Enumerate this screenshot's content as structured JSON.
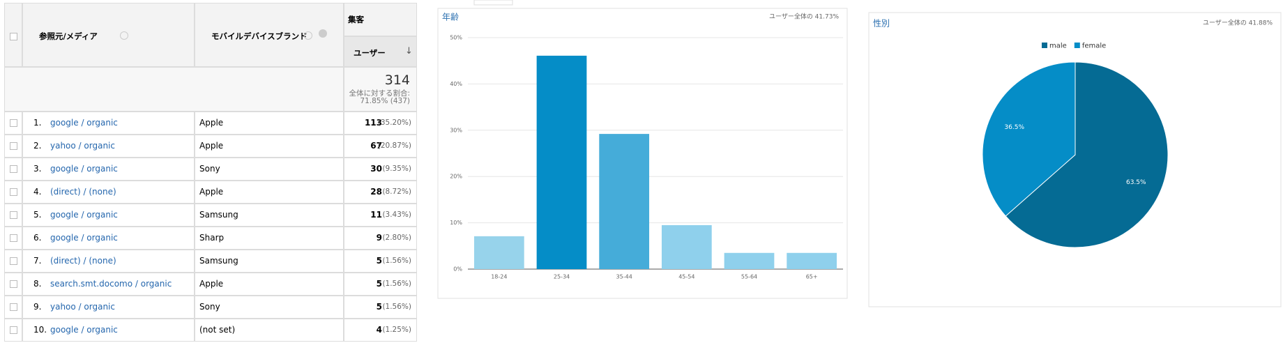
{
  "table": {
    "headers": {
      "source": "参照元/メディア",
      "brand": "モバイルデバイスブランド",
      "group": "集客",
      "users": "ユーザー"
    },
    "totals": {
      "value": "314",
      "caption": "全体に対する割合:",
      "share": "71.85% (437)"
    },
    "rows": [
      [
        "1.",
        "google / organic",
        "Apple",
        113,
        "(35.20%)"
      ],
      [
        "2.",
        "yahoo / organic",
        "Apple",
        67,
        "(20.87%)"
      ],
      [
        "3.",
        "google / organic",
        "Sony",
        30,
        "(9.35%)"
      ],
      [
        "4.",
        "(direct) / (none)",
        "Apple",
        28,
        "(8.72%)"
      ],
      [
        "5.",
        "google / organic",
        "Samsung",
        11,
        "(3.43%)"
      ],
      [
        "6.",
        "google / organic",
        "Sharp",
        9,
        "(2.80%)"
      ],
      [
        "7.",
        "(direct) / (none)",
        "Samsung",
        5,
        "(1.56%)"
      ],
      [
        "8.",
        "search.smt.docomo / organic",
        "Apple",
        5,
        "(1.56%)"
      ],
      [
        "9.",
        "yahoo / organic",
        "Sony",
        5,
        "(1.56%)"
      ],
      [
        "10.",
        "google / organic",
        "(not set)",
        4,
        "(1.25%)"
      ]
    ]
  },
  "chart_data": [
    {
      "type": "bar",
      "title": "年齢",
      "note": "ユーザー全体の 41.73%",
      "categories": [
        "18-24",
        "25-34",
        "35-44",
        "45-54",
        "55-64",
        "65+"
      ],
      "values": [
        7.1,
        46.1,
        29.2,
        9.5,
        3.5,
        3.5
      ],
      "colors": [
        "#97d3eb",
        "#058dc7",
        "#45acd9",
        "#8fd0ec",
        "#8fd0ec",
        "#8fd0ec"
      ],
      "ylim": [
        0,
        50
      ],
      "yticks": [
        {
          "value": 0,
          "label": "0%"
        },
        {
          "value": 10,
          "label": "10%"
        },
        {
          "value": 20,
          "label": "20%"
        },
        {
          "value": 30,
          "label": "30%"
        },
        {
          "value": 40,
          "label": "40%"
        },
        {
          "value": 50,
          "label": "50%"
        }
      ],
      "grid": true
    },
    {
      "type": "pie",
      "title": "性別",
      "note": "ユーザー全体の 41.88%",
      "categories": [
        "male",
        "female"
      ],
      "values": [
        63.5,
        36.5
      ],
      "value_labels": [
        "63.5%",
        "36.5%"
      ],
      "colors": [
        "#056b94",
        "#058dc7"
      ],
      "legend": "top"
    }
  ]
}
